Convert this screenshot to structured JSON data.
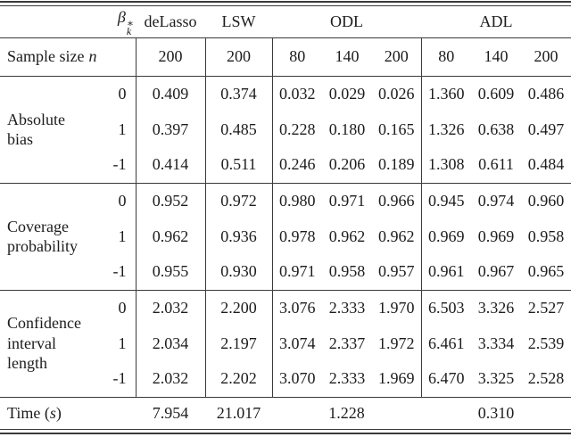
{
  "colors": {
    "background": "#ffffff",
    "text": "#1c1c1c",
    "rule": "#3a3a3a"
  },
  "table": {
    "header": {
      "beta_symbol": "β",
      "beta_sup": "∗",
      "beta_sub": "k",
      "col_delasso": "deLasso",
      "col_lsw": "LSW",
      "col_odl": "ODL",
      "col_adl": "ADL"
    },
    "sample_size": {
      "label_prefix": "Sample size",
      "label_var": "n",
      "values": [
        "200",
        "200",
        "80",
        "140",
        "200",
        "80",
        "140",
        "200"
      ]
    },
    "sections": [
      {
        "label_line1": "Absolute",
        "label_line2": "bias",
        "rows": [
          {
            "beta": "0",
            "values": [
              "0.409",
              "0.374",
              "0.032",
              "0.029",
              "0.026",
              "1.360",
              "0.609",
              "0.486"
            ]
          },
          {
            "beta": "1",
            "values": [
              "0.397",
              "0.485",
              "0.228",
              "0.180",
              "0.165",
              "1.326",
              "0.638",
              "0.497"
            ]
          },
          {
            "beta": "-1",
            "values": [
              "0.414",
              "0.511",
              "0.246",
              "0.206",
              "0.189",
              "1.308",
              "0.611",
              "0.484"
            ]
          }
        ]
      },
      {
        "label_line1": "Coverage",
        "label_line2": "probability",
        "rows": [
          {
            "beta": "0",
            "values": [
              "0.952",
              "0.972",
              "0.980",
              "0.971",
              "0.966",
              "0.945",
              "0.974",
              "0.960"
            ]
          },
          {
            "beta": "1",
            "values": [
              "0.962",
              "0.936",
              "0.978",
              "0.962",
              "0.962",
              "0.969",
              "0.969",
              "0.958"
            ]
          },
          {
            "beta": "-1",
            "values": [
              "0.955",
              "0.930",
              "0.971",
              "0.958",
              "0.957",
              "0.961",
              "0.967",
              "0.965"
            ]
          }
        ]
      },
      {
        "label_line1": "Confidence",
        "label_line2": "interval length",
        "rows": [
          {
            "beta": "0",
            "values": [
              "2.032",
              "2.200",
              "3.076",
              "2.333",
              "1.970",
              "6.503",
              "3.326",
              "2.527"
            ]
          },
          {
            "beta": "1",
            "values": [
              "2.034",
              "2.197",
              "3.074",
              "2.337",
              "1.972",
              "6.461",
              "3.334",
              "2.539"
            ]
          },
          {
            "beta": "-1",
            "values": [
              "2.032",
              "2.202",
              "3.070",
              "2.333",
              "1.969",
              "6.470",
              "3.325",
              "2.528"
            ]
          }
        ]
      }
    ],
    "time": {
      "label_prefix": "Time (",
      "label_var": "s",
      "label_suffix": ")",
      "values": [
        "7.954",
        "21.017",
        "1.228",
        "0.310"
      ]
    }
  }
}
